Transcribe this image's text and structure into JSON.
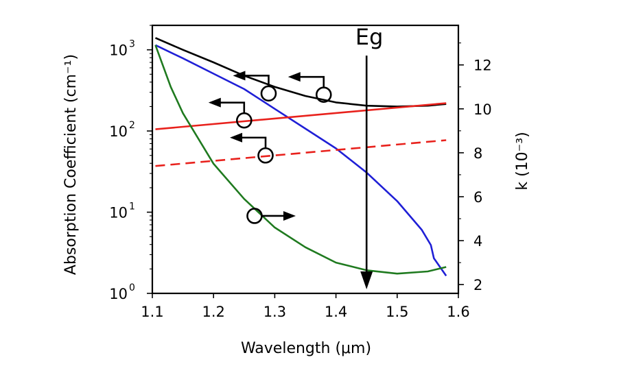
{
  "chart_data": {
    "type": "line",
    "xlabel": "Wavelength (μm)",
    "xlim": [
      1.1,
      1.6
    ],
    "x_ticks": [
      "1.1",
      "1.2",
      "1.3",
      "1.4",
      "1.5",
      "1.6"
    ],
    "y_left": {
      "label": "Absorption Coefficient (cm⁻¹)",
      "scale": "log",
      "lim": [
        1,
        2000
      ],
      "ticks": [
        1,
        10,
        100,
        1000
      ],
      "tick_base": "10",
      "tick_exponents": [
        "0",
        "1",
        "2",
        "3"
      ]
    },
    "y_right": {
      "label": "k (10⁻³)",
      "scale": "linear",
      "lim": [
        1.6,
        13.8
      ],
      "ticks": [
        "2",
        "4",
        "6",
        "8",
        "10",
        "12"
      ]
    },
    "series": [
      {
        "color": "#000000",
        "axis": "left",
        "style": "solid",
        "points": [
          [
            1.105,
            1400
          ],
          [
            1.15,
            1000
          ],
          [
            1.2,
            700
          ],
          [
            1.25,
            480
          ],
          [
            1.3,
            350
          ],
          [
            1.35,
            270
          ],
          [
            1.4,
            225
          ],
          [
            1.45,
            205
          ],
          [
            1.5,
            200
          ],
          [
            1.55,
            205
          ],
          [
            1.58,
            215
          ]
        ]
      },
      {
        "color": "#1f1fd6",
        "axis": "right",
        "style": "solid",
        "points": [
          [
            1.105,
            12.9
          ],
          [
            1.15,
            12.3
          ],
          [
            1.2,
            11.6
          ],
          [
            1.25,
            10.9
          ],
          [
            1.3,
            10.0
          ],
          [
            1.35,
            9.1
          ],
          [
            1.4,
            8.2
          ],
          [
            1.45,
            7.1
          ],
          [
            1.5,
            5.8
          ],
          [
            1.54,
            4.5
          ],
          [
            1.555,
            3.8
          ],
          [
            1.56,
            3.2
          ],
          [
            1.58,
            2.4
          ]
        ]
      },
      {
        "color": "#e8211c",
        "axis": "left",
        "style": "solid",
        "points": [
          [
            1.105,
            105
          ],
          [
            1.58,
            220
          ]
        ]
      },
      {
        "color": "#e8211c",
        "axis": "left",
        "style": "dashed",
        "points": [
          [
            1.105,
            37
          ],
          [
            1.58,
            77
          ]
        ]
      },
      {
        "color": "#1f7a1f",
        "axis": "right",
        "style": "solid",
        "points": [
          [
            1.105,
            12.9
          ],
          [
            1.13,
            11.0
          ],
          [
            1.15,
            9.8
          ],
          [
            1.2,
            7.5
          ],
          [
            1.25,
            5.9
          ],
          [
            1.3,
            4.6
          ],
          [
            1.35,
            3.7
          ],
          [
            1.4,
            3.0
          ],
          [
            1.45,
            2.65
          ],
          [
            1.5,
            2.5
          ],
          [
            1.55,
            2.6
          ],
          [
            1.58,
            2.8
          ]
        ]
      }
    ],
    "markers": [
      {
        "x": 1.38,
        "y": 280,
        "axis": "left",
        "arrow": "left"
      },
      {
        "x": 1.29,
        "y": 290,
        "axis": "left",
        "arrow": "left"
      },
      {
        "x": 1.25,
        "y": 135,
        "axis": "left",
        "arrow": "left"
      },
      {
        "x": 1.285,
        "y": 50,
        "axis": "left",
        "arrow": "left"
      },
      {
        "x": 1.267,
        "y": 9,
        "axis": "left",
        "arrow": "right"
      }
    ],
    "annotation": {
      "text": "Eg",
      "x": 1.45,
      "y_start": 1250,
      "y_end": 1
    }
  }
}
